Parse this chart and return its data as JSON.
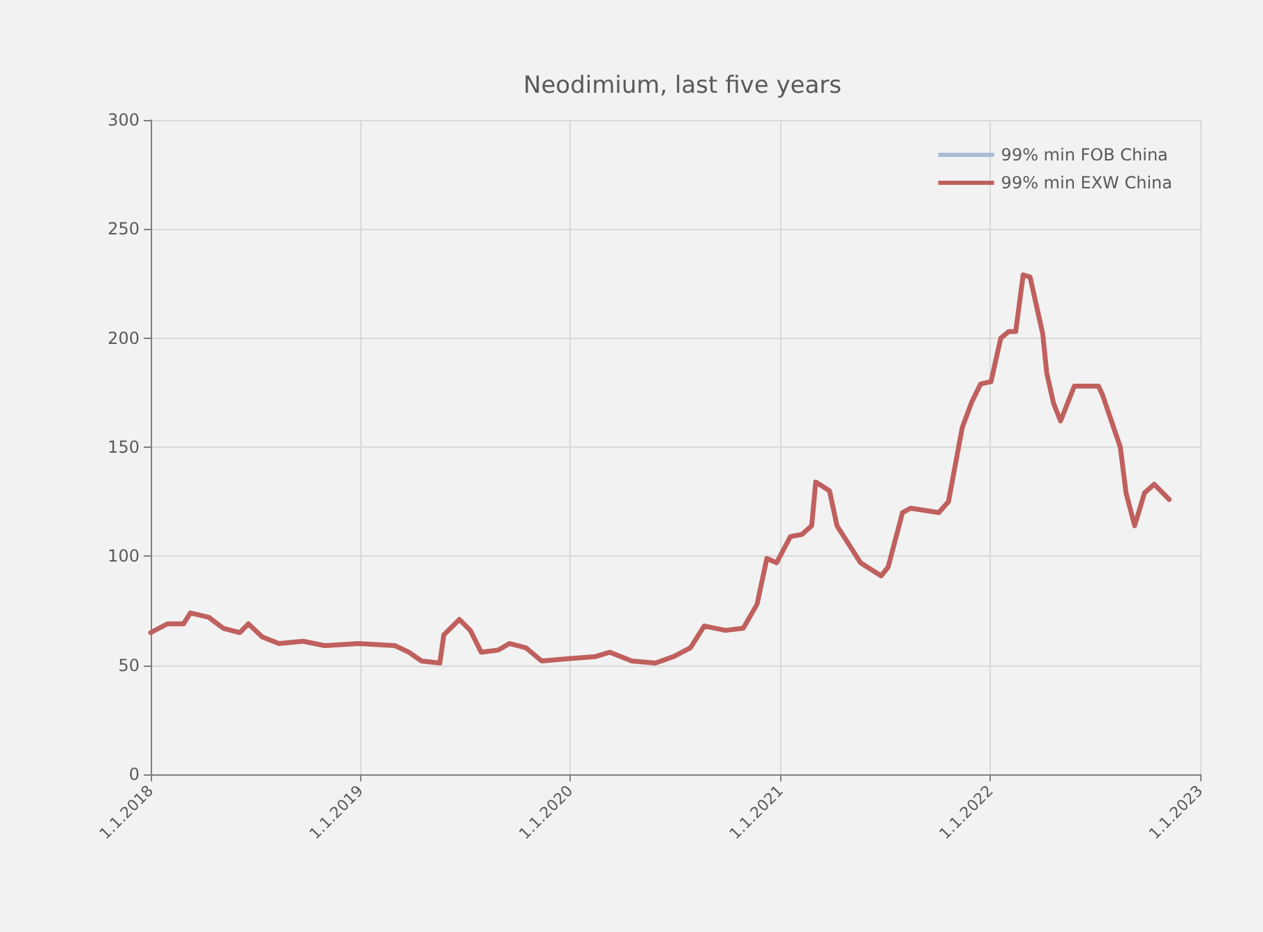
{
  "chart_data": {
    "type": "line",
    "title": "Neodimium, last five years",
    "x": [
      "2018-01-01",
      "2018-01-30",
      "2018-02-27",
      "2018-03-11",
      "2018-04-12",
      "2018-05-07",
      "2018-06-05",
      "2018-06-20",
      "2018-07-14",
      "2018-08-12",
      "2018-09-23",
      "2018-10-31",
      "2018-12-29",
      "2019-03-02",
      "2019-03-26",
      "2019-04-17",
      "2019-05-19",
      "2019-05-26",
      "2019-06-22",
      "2019-07-11",
      "2019-07-30",
      "2019-08-29",
      "2019-09-17",
      "2019-10-16",
      "2019-11-12",
      "2019-12-28",
      "2020-02-14",
      "2020-03-10",
      "2020-04-17",
      "2020-05-28",
      "2020-06-29",
      "2020-07-28",
      "2020-08-21",
      "2020-09-27",
      "2020-10-28",
      "2020-11-21",
      "2020-12-08",
      "2020-12-25",
      "2021-01-18",
      "2021-02-07",
      "2021-02-24",
      "2021-03-03",
      "2021-03-27",
      "2021-04-09",
      "2021-05-20",
      "2021-06-25",
      "2021-07-07",
      "2021-08-01",
      "2021-08-15",
      "2021-10-03",
      "2021-10-20",
      "2021-11-13",
      "2021-11-30",
      "2021-12-15",
      "2022-01-02",
      "2022-01-19",
      "2022-02-02",
      "2022-02-14",
      "2022-02-27",
      "2022-03-11",
      "2022-04-02",
      "2022-04-09",
      "2022-04-21",
      "2022-05-03",
      "2022-05-27",
      "2022-07-08",
      "2022-07-15",
      "2022-08-15",
      "2022-08-25",
      "2022-09-09",
      "2022-09-26",
      "2022-10-13",
      "2022-11-08"
    ],
    "series": [
      {
        "name": "99% min FOB China",
        "color": "#a9bdd3",
        "values": [
          null,
          null,
          null,
          null,
          null,
          null,
          null,
          null,
          null,
          null,
          null,
          null,
          null,
          null,
          null,
          null,
          null,
          null,
          null,
          null,
          null,
          null,
          null,
          null,
          null,
          null,
          null,
          null,
          null,
          null,
          null,
          null,
          null,
          null,
          null,
          null,
          null,
          null,
          null,
          null,
          null,
          null,
          null,
          null,
          null,
          null,
          null,
          null,
          null,
          null,
          null,
          null,
          null,
          null,
          null,
          null,
          null,
          null,
          null,
          null,
          null,
          null,
          null,
          null,
          null,
          null,
          null,
          null,
          null,
          null,
          null,
          null,
          null
        ]
      },
      {
        "name": "99% min EXW China",
        "color": "#c0605e",
        "values": [
          65,
          69,
          69,
          74,
          72,
          67,
          65,
          69,
          63,
          60,
          61,
          59,
          60,
          59,
          56,
          52,
          51,
          64,
          71,
          66,
          56,
          57,
          60,
          58,
          52,
          53,
          54,
          56,
          52,
          51,
          54,
          58,
          68,
          66,
          67,
          78,
          99,
          97,
          109,
          110,
          114,
          134,
          130,
          114,
          97,
          91,
          95,
          120,
          122,
          120,
          125,
          159,
          171,
          179,
          180,
          200,
          203,
          203,
          229,
          228,
          202,
          184,
          170,
          162,
          178,
          178,
          174,
          150,
          129,
          114,
          129,
          133,
          126
        ]
      }
    ],
    "xlim": [
      "2018-01-01",
      "2023-01-01"
    ],
    "xticks": [
      {
        "value": "2018-01-01",
        "label": "1.1.2018"
      },
      {
        "value": "2019-01-01",
        "label": "1.1.2019"
      },
      {
        "value": "2020-01-01",
        "label": "1.1.2020"
      },
      {
        "value": "2021-01-01",
        "label": "1.1.2021"
      },
      {
        "value": "2022-01-01",
        "label": "1.1.2022"
      },
      {
        "value": "2023-01-01",
        "label": "1.1.2023"
      }
    ],
    "ylim": [
      0,
      300
    ],
    "yticks": [
      0,
      50,
      100,
      150,
      200,
      250,
      300
    ],
    "grid": true,
    "legend": "top right"
  }
}
